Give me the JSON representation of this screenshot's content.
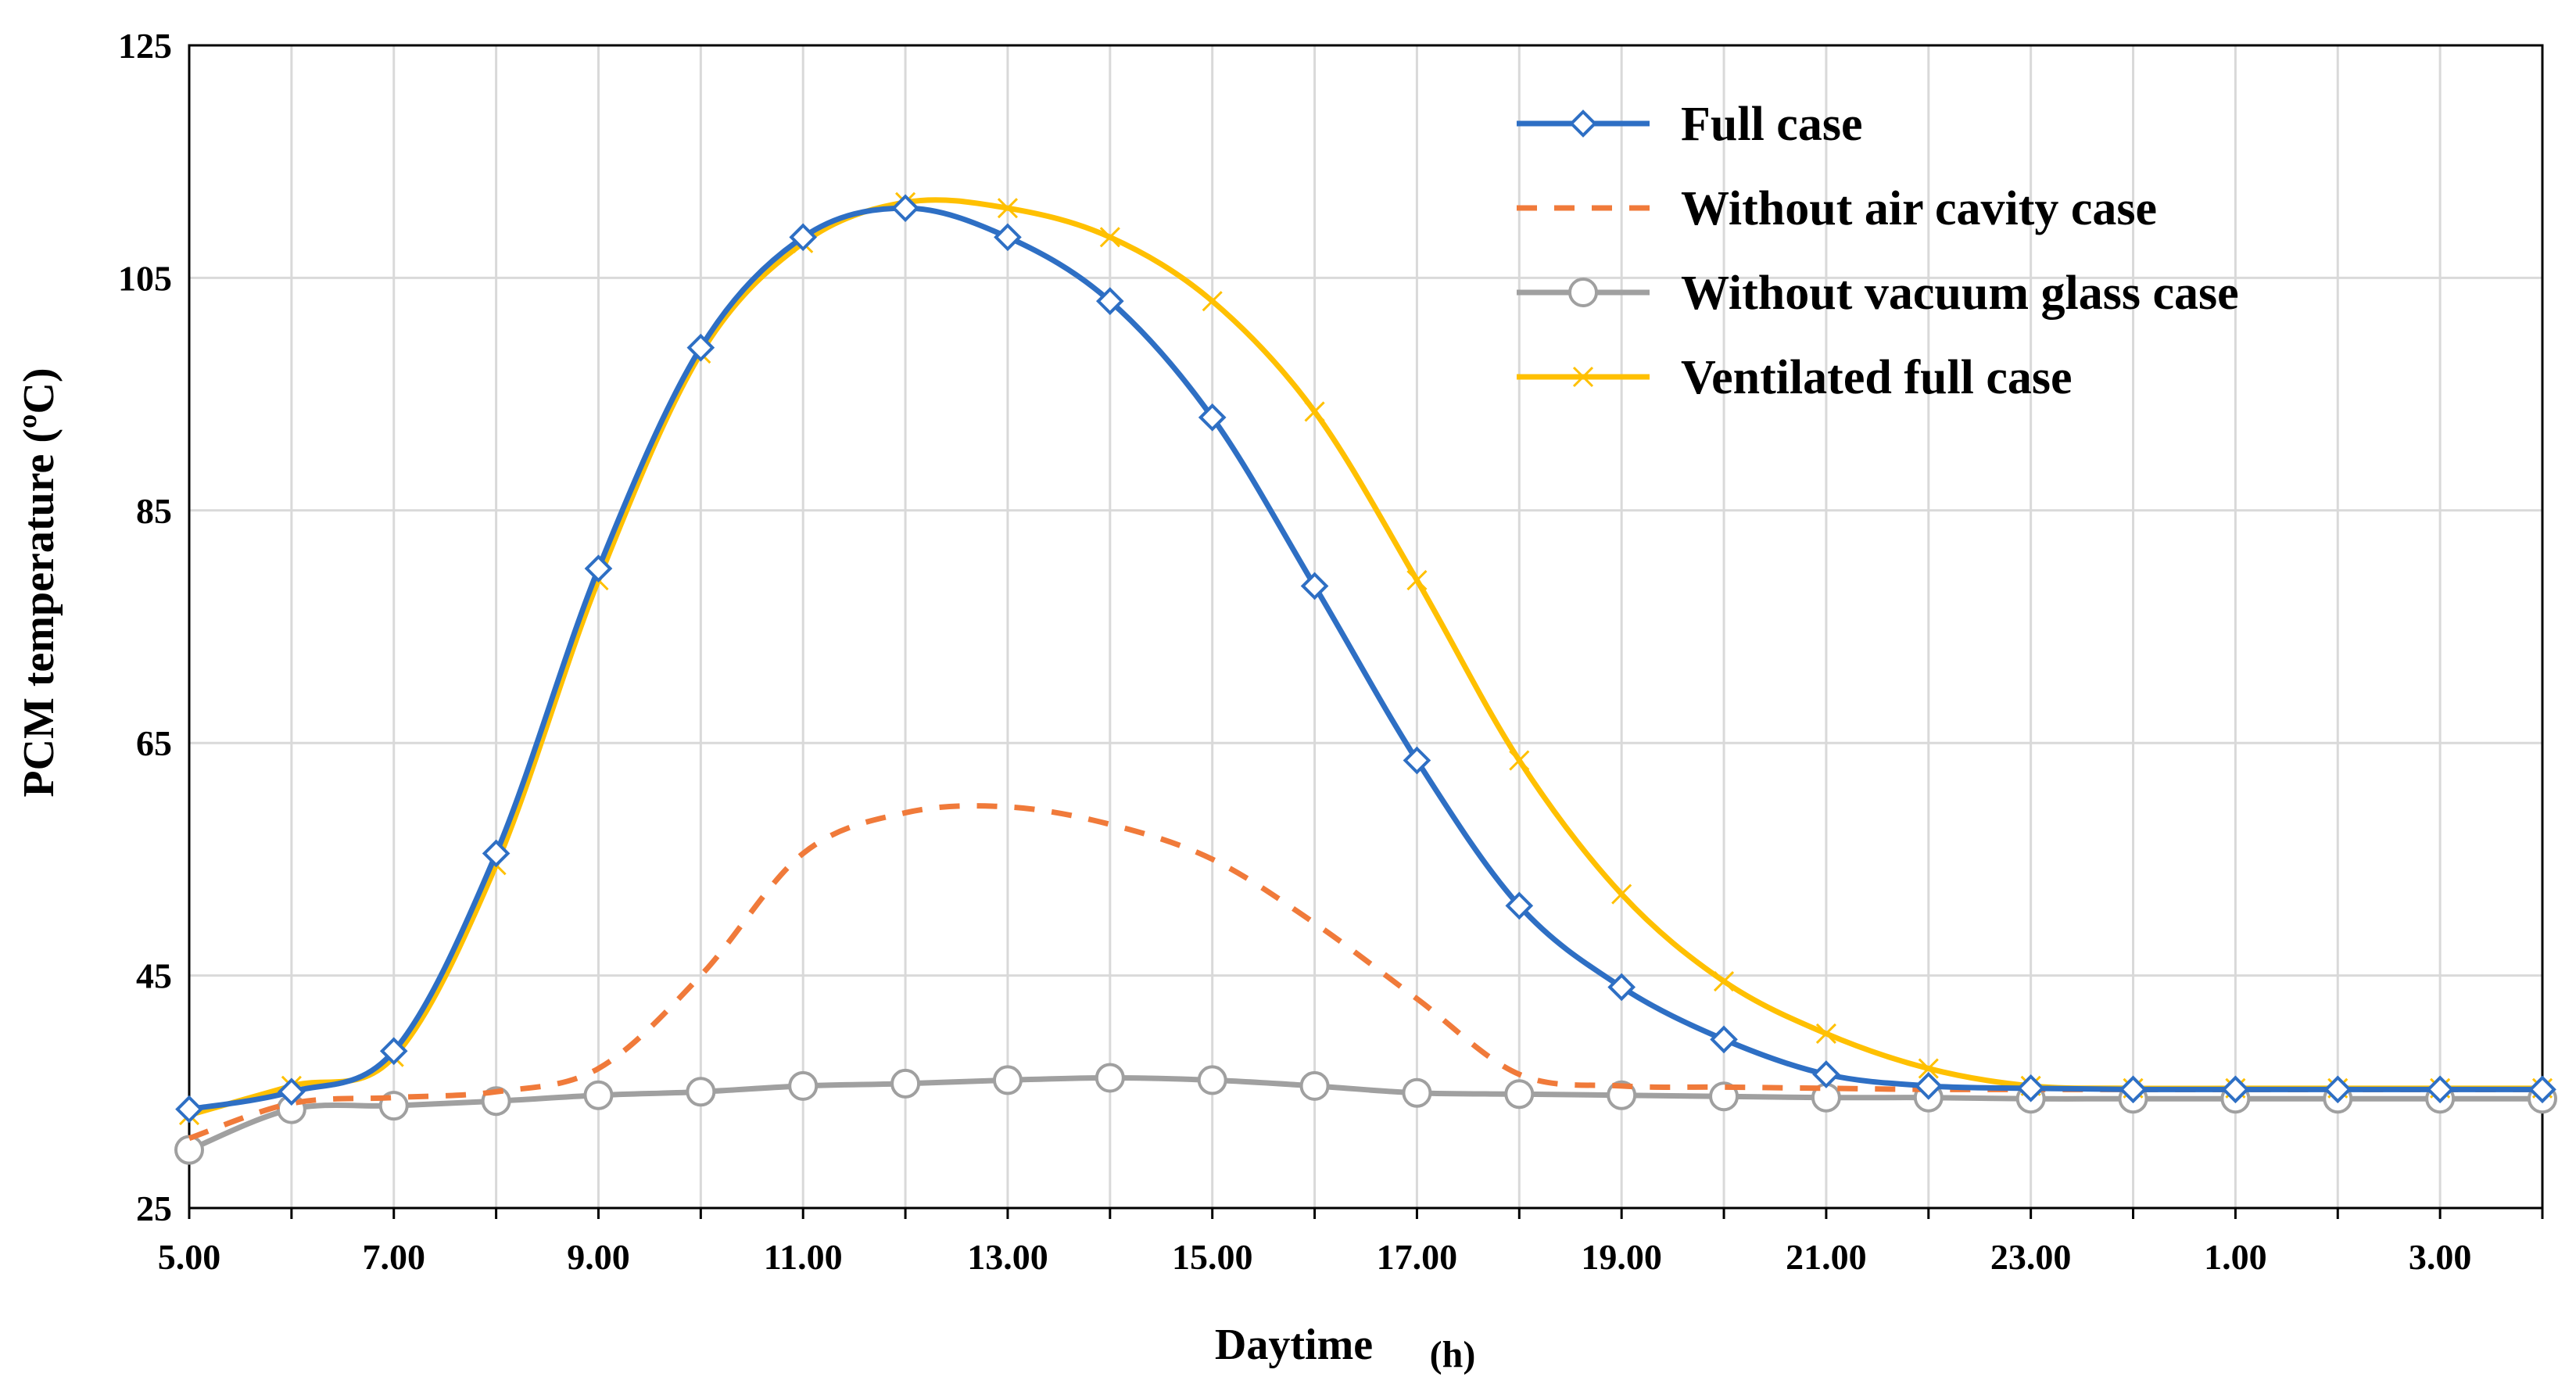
{
  "chart_data": {
    "type": "line",
    "title": "",
    "xlabel": "Daytime",
    "xlabel_unit": "(h)",
    "ylabel": "PCM temperature (ºC)",
    "ylim": [
      25,
      125
    ],
    "yticks": [
      25,
      45,
      65,
      85,
      105,
      125
    ],
    "y_tick_labels": [
      "25",
      "45",
      "65",
      "85",
      "105",
      "125"
    ],
    "x_hours": [
      5,
      6,
      7,
      8,
      9,
      10,
      11,
      12,
      13,
      14,
      15,
      16,
      17,
      18,
      19,
      20,
      21,
      22,
      23,
      24,
      25,
      26,
      27,
      28
    ],
    "x_tick_labels": [
      "5.00",
      "7.00",
      "9.00",
      "11.00",
      "13.00",
      "15.00",
      "17.00",
      "19.00",
      "21.00",
      "23.00",
      "1.00",
      "3.00"
    ],
    "grid": true,
    "legend_position": "top-right",
    "series": [
      {
        "name": "Full case",
        "color": "#2E6FC4",
        "marker": "diamond",
        "dash": "solid",
        "values": [
          33.5,
          35.0,
          38.5,
          55.5,
          80.0,
          99.0,
          108.5,
          111.0,
          108.5,
          103.0,
          93.0,
          78.5,
          63.5,
          51.0,
          44.0,
          39.5,
          36.5,
          35.5,
          35.3,
          35.2,
          35.2,
          35.2,
          35.2,
          35.2
        ]
      },
      {
        "name": "Without air cavity case",
        "color": "#F07A3A",
        "marker": "none",
        "dash": "dashed",
        "values": [
          31.0,
          34.0,
          34.5,
          35.0,
          37.0,
          45.0,
          55.5,
          59.0,
          59.5,
          58.0,
          55.0,
          49.5,
          43.0,
          36.5,
          35.5,
          35.4,
          35.3,
          35.2,
          35.2,
          35.2,
          35.2,
          35.2,
          35.2,
          35.2
        ]
      },
      {
        "name": "Without vacuum glass case",
        "color": "#A0A0A0",
        "marker": "circle",
        "dash": "solid",
        "values": [
          30.0,
          33.5,
          33.8,
          34.2,
          34.7,
          35.0,
          35.5,
          35.7,
          36.0,
          36.2,
          36.0,
          35.5,
          34.9,
          34.8,
          34.7,
          34.6,
          34.5,
          34.5,
          34.4,
          34.4,
          34.4,
          34.4,
          34.4,
          34.4
        ]
      },
      {
        "name": "Ventilated full case",
        "color": "#FFC000",
        "marker": "x",
        "dash": "solid",
        "values": [
          33.0,
          35.5,
          38.0,
          54.5,
          79.0,
          98.5,
          108.0,
          111.5,
          111.0,
          108.5,
          103.0,
          93.5,
          79.0,
          63.5,
          52.0,
          44.5,
          40.0,
          37.0,
          35.5,
          35.3,
          35.3,
          35.3,
          35.3,
          35.3
        ]
      }
    ]
  }
}
